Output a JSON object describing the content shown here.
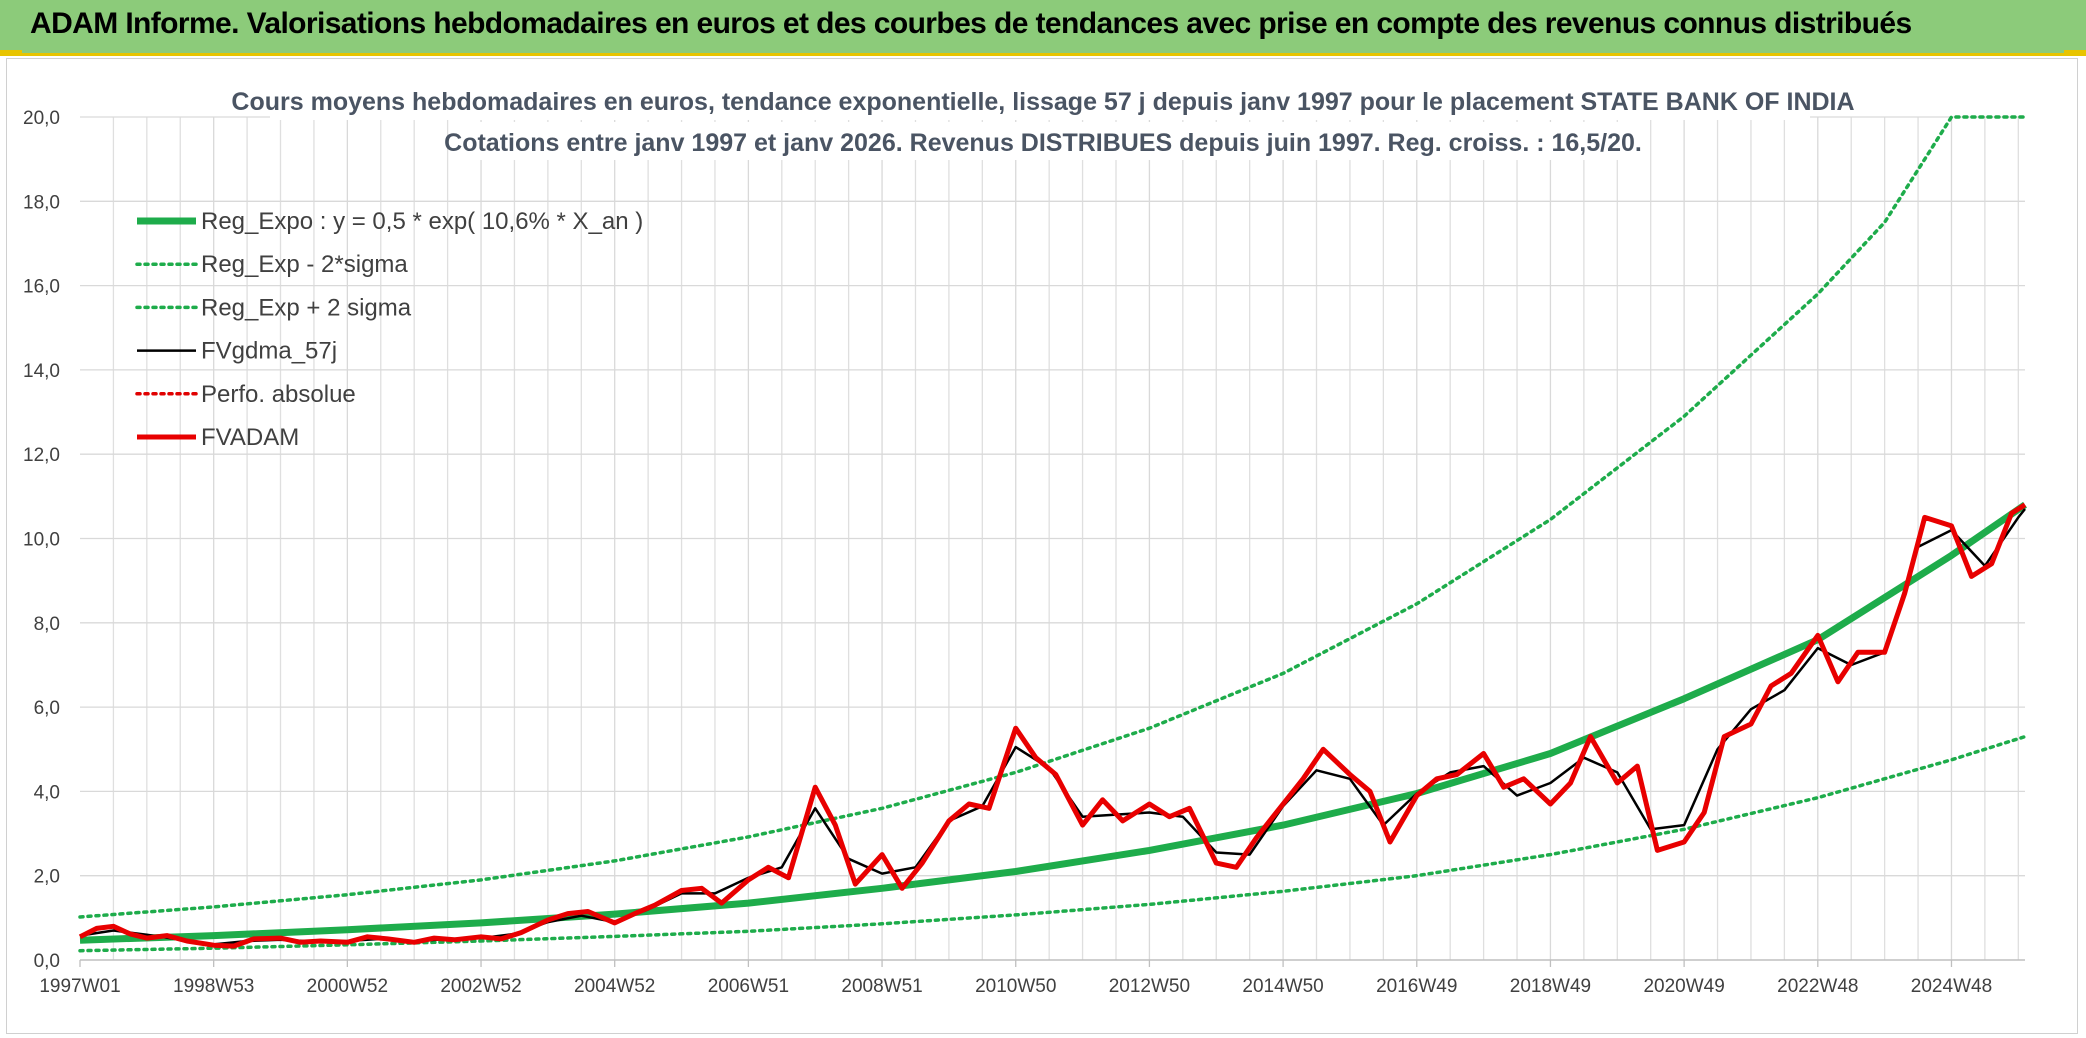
{
  "header": {
    "title": "ADAM Informe. Valorisations hebdomadaires en euros et des courbes de tendances avec prise en compte des revenus connus distribués"
  },
  "colors": {
    "header_bg": "#8ccb7a",
    "accent": "#e8c400",
    "reg_expo": "#1eac4b",
    "sigma": "#1eac4b",
    "fvgdma": "#000000",
    "perfo": "#e00000",
    "fvadam": "#e80000"
  },
  "chart_data": {
    "type": "line",
    "title": "Cours moyens hebdomadaires en euros, tendance exponentielle, lissage 57 j depuis janv 1997 pour le placement STATE BANK OF INDIA",
    "subtitle": "Cotations entre janv 1997 et janv 2026. Revenus DISTRIBUES depuis juin 1997. Reg. croiss. : 16,5/20.",
    "xlabel": "",
    "ylabel": "",
    "ylim": [
      0,
      20
    ],
    "xlim": [
      1997.0,
      2026.1
    ],
    "grid": true,
    "legend_position": "top-left",
    "y_ticks": [
      "0,0",
      "2,0",
      "4,0",
      "6,0",
      "8,0",
      "10,0",
      "12,0",
      "14,0",
      "16,0",
      "18,0",
      "20,0"
    ],
    "x_ticks": [
      {
        "label": "1997W01",
        "x": 1997.0
      },
      {
        "label": "1998W53",
        "x": 1999.0
      },
      {
        "label": "2000W52",
        "x": 2001.0
      },
      {
        "label": "2002W52",
        "x": 2003.0
      },
      {
        "label": "2004W52",
        "x": 2005.0
      },
      {
        "label": "2006W51",
        "x": 2007.0
      },
      {
        "label": "2008W51",
        "x": 2009.0
      },
      {
        "label": "2010W50",
        "x": 2011.0
      },
      {
        "label": "2012W50",
        "x": 2013.0
      },
      {
        "label": "2014W50",
        "x": 2015.0
      },
      {
        "label": "2016W49",
        "x": 2017.0
      },
      {
        "label": "2018W49",
        "x": 2019.0
      },
      {
        "label": "2020W49",
        "x": 2021.0
      },
      {
        "label": "2022W48",
        "x": 2023.0
      },
      {
        "label": "2024W48",
        "x": 2025.0
      }
    ],
    "series": [
      {
        "name": "Reg_Expo : y = 0,5 * exp( 10,6% *  X_an )",
        "style": "solid-thick",
        "color": "#1eac4b",
        "x": [
          1997.0,
          1999.0,
          2001.0,
          2003.0,
          2005.0,
          2007.0,
          2009.0,
          2011.0,
          2013.0,
          2015.0,
          2017.0,
          2019.0,
          2021.0,
          2023.0,
          2025.0,
          2026.1
        ],
        "y": [
          0.47,
          0.58,
          0.72,
          0.88,
          1.09,
          1.35,
          1.7,
          2.1,
          2.6,
          3.2,
          3.95,
          4.9,
          6.2,
          7.6,
          9.6,
          10.8
        ]
      },
      {
        "name": "Reg_Exp - 2*sigma",
        "style": "dotted",
        "color": "#1eac4b",
        "x": [
          1997.0,
          1999.0,
          2001.0,
          2003.0,
          2005.0,
          2007.0,
          2009.0,
          2011.0,
          2013.0,
          2015.0,
          2017.0,
          2019.0,
          2021.0,
          2023.0,
          2025.0,
          2026.1
        ],
        "y": [
          0.22,
          0.28,
          0.36,
          0.45,
          0.56,
          0.68,
          0.86,
          1.07,
          1.32,
          1.63,
          2.0,
          2.5,
          3.1,
          3.85,
          4.75,
          5.3
        ]
      },
      {
        "name": "Reg_Exp + 2 sigma",
        "style": "dotted",
        "color": "#1eac4b",
        "x": [
          1997.0,
          1999.0,
          2001.0,
          2003.0,
          2005.0,
          2007.0,
          2009.0,
          2011.0,
          2013.0,
          2015.0,
          2017.0,
          2019.0,
          2021.0,
          2023.0,
          2024.0,
          2025.0,
          2026.1
        ],
        "y": [
          1.02,
          1.26,
          1.55,
          1.9,
          2.35,
          2.92,
          3.6,
          4.45,
          5.5,
          6.8,
          8.45,
          10.45,
          12.9,
          15.8,
          17.5,
          20.0,
          20.0
        ]
      },
      {
        "name": "FVgdma_57j",
        "style": "solid-thin",
        "color": "#000000",
        "x": [
          1997.0,
          1997.5,
          1998.0,
          1998.5,
          1999.0,
          1999.5,
          2000.0,
          2000.5,
          2001.0,
          2001.5,
          2002.0,
          2002.5,
          2003.0,
          2003.5,
          2004.0,
          2004.5,
          2005.0,
          2005.5,
          2006.0,
          2006.5,
          2007.0,
          2007.5,
          2008.0,
          2008.5,
          2009.0,
          2009.5,
          2010.0,
          2010.5,
          2011.0,
          2011.5,
          2012.0,
          2012.5,
          2013.0,
          2013.5,
          2014.0,
          2014.5,
          2015.0,
          2015.5,
          2016.0,
          2016.5,
          2017.0,
          2017.5,
          2018.0,
          2018.5,
          2019.0,
          2019.5,
          2020.0,
          2020.5,
          2021.0,
          2021.5,
          2022.0,
          2022.5,
          2023.0,
          2023.5,
          2024.0,
          2024.5,
          2025.0,
          2025.5,
          2026.0,
          2026.1
        ],
        "y": [
          0.58,
          0.7,
          0.6,
          0.48,
          0.37,
          0.45,
          0.48,
          0.44,
          0.45,
          0.5,
          0.44,
          0.5,
          0.52,
          0.62,
          0.9,
          1.05,
          0.9,
          1.2,
          1.58,
          1.58,
          1.95,
          2.2,
          3.6,
          2.4,
          2.05,
          2.2,
          3.3,
          3.65,
          5.05,
          4.55,
          3.4,
          3.45,
          3.5,
          3.4,
          2.55,
          2.5,
          3.65,
          4.5,
          4.3,
          3.2,
          3.95,
          4.45,
          4.6,
          3.9,
          4.2,
          4.8,
          4.45,
          3.1,
          3.2,
          5.0,
          5.95,
          6.4,
          7.4,
          7.0,
          7.3,
          9.8,
          10.2,
          9.35,
          10.5,
          10.7
        ]
      },
      {
        "name": "Perfo. absolue",
        "style": "dotted",
        "color": "#e00000",
        "x": [],
        "y": []
      },
      {
        "name": "FVADAM",
        "style": "solid-thick",
        "color": "#e80000",
        "x": [
          1997.0,
          1997.25,
          1997.5,
          1997.75,
          1998.0,
          1998.3,
          1998.6,
          1999.0,
          1999.3,
          1999.6,
          2000.0,
          2000.3,
          2000.6,
          2001.0,
          2001.3,
          2001.6,
          2002.0,
          2002.3,
          2002.6,
          2003.0,
          2003.3,
          2003.6,
          2004.0,
          2004.3,
          2004.6,
          2005.0,
          2005.3,
          2005.6,
          2006.0,
          2006.3,
          2006.6,
          2007.0,
          2007.3,
          2007.6,
          2008.0,
          2008.3,
          2008.6,
          2009.0,
          2009.3,
          2009.6,
          2010.0,
          2010.3,
          2010.6,
          2011.0,
          2011.3,
          2011.6,
          2012.0,
          2012.3,
          2012.6,
          2013.0,
          2013.3,
          2013.6,
          2014.0,
          2014.3,
          2014.6,
          2015.0,
          2015.3,
          2015.6,
          2016.0,
          2016.3,
          2016.6,
          2017.0,
          2017.3,
          2017.6,
          2018.0,
          2018.3,
          2018.6,
          2019.0,
          2019.3,
          2019.6,
          2020.0,
          2020.3,
          2020.6,
          2021.0,
          2021.3,
          2021.6,
          2022.0,
          2022.3,
          2022.6,
          2023.0,
          2023.3,
          2023.6,
          2024.0,
          2024.3,
          2024.6,
          2025.0,
          2025.3,
          2025.6,
          2025.9,
          2026.1
        ],
        "y": [
          0.55,
          0.75,
          0.8,
          0.62,
          0.52,
          0.58,
          0.45,
          0.35,
          0.33,
          0.5,
          0.52,
          0.42,
          0.45,
          0.42,
          0.55,
          0.5,
          0.42,
          0.52,
          0.48,
          0.55,
          0.5,
          0.65,
          0.95,
          1.1,
          1.15,
          0.88,
          1.1,
          1.3,
          1.65,
          1.7,
          1.35,
          1.9,
          2.2,
          1.95,
          4.1,
          3.2,
          1.8,
          2.5,
          1.7,
          2.3,
          3.3,
          3.7,
          3.6,
          5.5,
          4.8,
          4.4,
          3.2,
          3.8,
          3.3,
          3.7,
          3.4,
          3.6,
          2.3,
          2.2,
          2.9,
          3.7,
          4.3,
          5.0,
          4.4,
          4.0,
          2.8,
          3.9,
          4.3,
          4.4,
          4.9,
          4.1,
          4.3,
          3.7,
          4.2,
          5.3,
          4.2,
          4.6,
          2.6,
          2.8,
          3.5,
          5.3,
          5.6,
          6.5,
          6.8,
          7.7,
          6.6,
          7.3,
          7.3,
          8.7,
          10.5,
          10.3,
          9.1,
          9.4,
          10.6,
          10.8
        ]
      }
    ]
  }
}
